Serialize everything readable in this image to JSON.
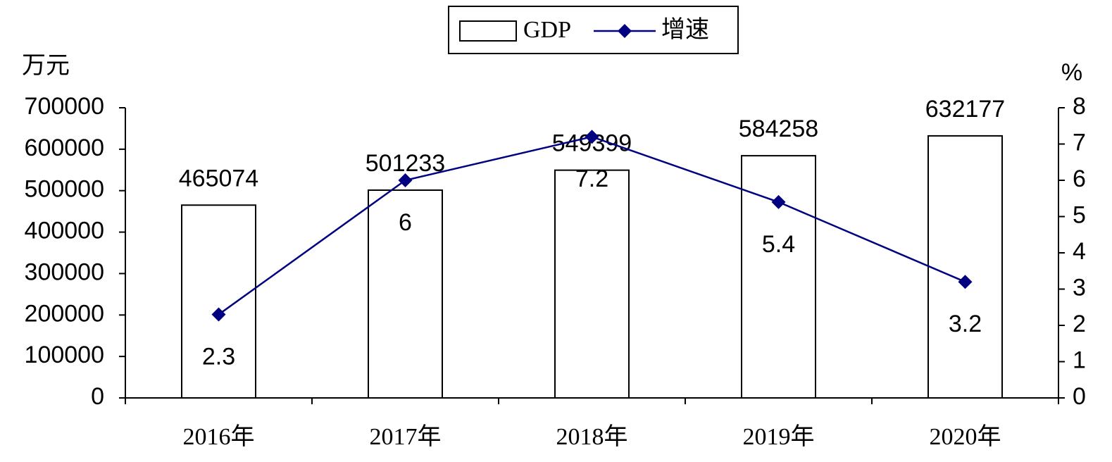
{
  "chart_data": {
    "type": "bar-line",
    "y_label": "万元",
    "y2_label": "%",
    "categories": [
      "2016年",
      "2017年",
      "2018年",
      "2019年",
      "2020年"
    ],
    "series": [
      {
        "name": "GDP",
        "type": "bar",
        "color": "#ffffff",
        "values": [
          465074,
          501233,
          549399,
          584258,
          632177
        ]
      },
      {
        "name": "增速",
        "type": "line",
        "axis": "y2",
        "color": "#000080",
        "values": [
          2.3,
          6,
          7.2,
          5.4,
          3.2
        ]
      }
    ],
    "ylim": [
      0,
      700000
    ],
    "yticks": [
      0,
      100000,
      200000,
      300000,
      400000,
      500000,
      600000,
      700000
    ],
    "y2lim": [
      0,
      8
    ],
    "y2ticks": [
      0,
      1,
      2,
      3,
      4,
      5,
      6,
      7,
      8
    ],
    "grid": false,
    "legend": "top"
  }
}
